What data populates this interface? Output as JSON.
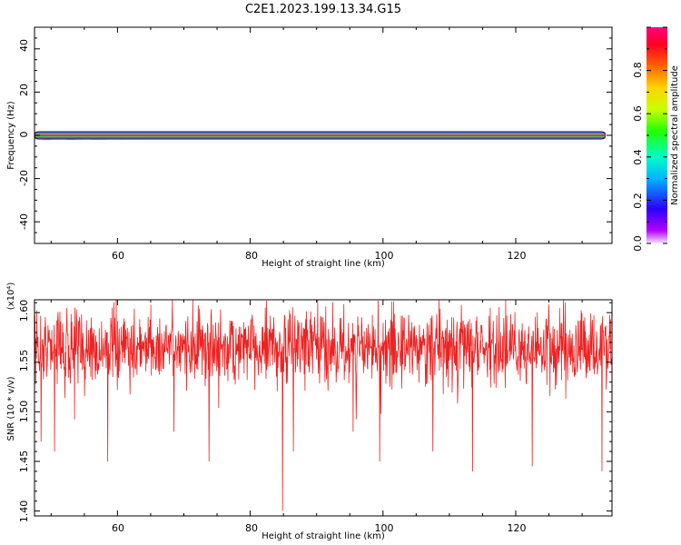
{
  "title": "C2E1.2023.199.13.34.G15",
  "colors": {
    "snr_line": "#ee2222",
    "track_center": "#ff2a7a",
    "track_outline": "#111111"
  },
  "chart_data": [
    {
      "id": "spectrogram",
      "type": "heatmap",
      "xlabel": "Height of straight line (km)",
      "ylabel": "Frequency (Hz)",
      "xlim": [
        47.5,
        134.5
      ],
      "ylim": [
        -50,
        50
      ],
      "xticks": [
        "60",
        "80",
        "100",
        "120"
      ],
      "yticks": [
        "40",
        "20",
        "0",
        "-20",
        "-40"
      ],
      "track": {
        "x_start": 47.5,
        "x_end": 133.5,
        "frequency": 0
      },
      "colorbar": {
        "label": "Normalized spectral amplitude",
        "range": [
          0,
          1
        ],
        "ticks": [
          "0.0",
          "0.2",
          "0.4",
          "0.6",
          "0.8"
        ],
        "colormap": "rainbow (purple-blue-cyan-green-yellow-orange-red-magenta)"
      }
    },
    {
      "id": "snr",
      "type": "line",
      "xlabel": "Height of straight line (km)",
      "ylabel": "SNR (10 * v/v)",
      "yexponent": "(x10⁴)",
      "xlim": [
        47.5,
        134.5
      ],
      "ylim": [
        1.395,
        1.613
      ],
      "xticks": [
        "60",
        "80",
        "100",
        "120"
      ],
      "yticks": [
        "1.60",
        "1.55",
        "1.50",
        "1.45",
        "1.40"
      ],
      "series": [
        {
          "mean": 1.565,
          "noise": 0.018,
          "n_points": 1500,
          "x_range": [
            47.5,
            134.5
          ],
          "dips": [
            [
              48.5,
              1.47
            ],
            [
              50.5,
              1.46
            ],
            [
              58.5,
              1.45
            ],
            [
              68.5,
              1.48
            ],
            [
              73.8,
              1.45
            ],
            [
              84.9,
              1.4
            ],
            [
              86.5,
              1.46
            ],
            [
              95.5,
              1.48
            ],
            [
              99.5,
              1.45
            ],
            [
              107.5,
              1.46
            ],
            [
              113.5,
              1.44
            ],
            [
              122.5,
              1.445
            ],
            [
              133.0,
              1.44
            ]
          ]
        }
      ]
    }
  ]
}
